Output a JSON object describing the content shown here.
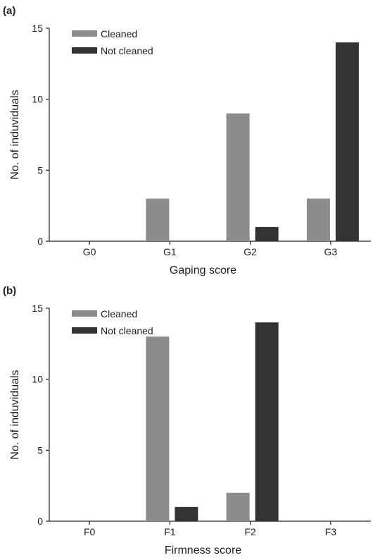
{
  "chart_data": [
    {
      "type": "bar",
      "panel_label": "(a)",
      "categories": [
        "G0",
        "G1",
        "G2",
        "G3"
      ],
      "series": [
        {
          "name": "Cleaned",
          "values": [
            0,
            3,
            9,
            3
          ],
          "color": "#8c8c8c"
        },
        {
          "name": "Not cleaned",
          "values": [
            0,
            0,
            1,
            14
          ],
          "color": "#333333"
        }
      ],
      "xlabel": "Gaping score",
      "ylabel": "No. of induviduals",
      "ylim": [
        0,
        15
      ],
      "yticks": [
        "0",
        "5",
        "10",
        "15"
      ],
      "legend": "top-left",
      "grid": false
    },
    {
      "type": "bar",
      "panel_label": "(b)",
      "categories": [
        "F0",
        "F1",
        "F2",
        "F3"
      ],
      "series": [
        {
          "name": "Cleaned",
          "values": [
            0,
            13,
            2,
            0
          ],
          "color": "#8c8c8c"
        },
        {
          "name": "Not cleaned",
          "values": [
            0,
            1,
            14,
            0
          ],
          "color": "#333333"
        }
      ],
      "xlabel": "Firmness score",
      "ylabel": "No. of induviduals",
      "ylim": [
        0,
        15
      ],
      "yticks": [
        "0",
        "5",
        "10",
        "15"
      ],
      "legend": "top-left",
      "grid": false
    }
  ]
}
